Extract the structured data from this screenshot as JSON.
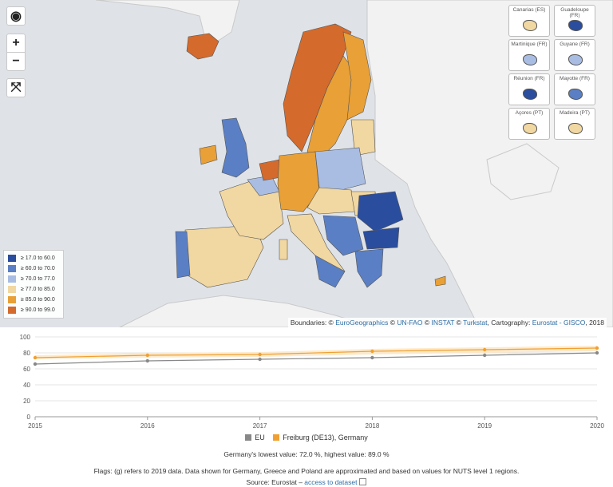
{
  "map": {
    "controls": {
      "globe_label": "◉",
      "zoom_in_label": "+",
      "zoom_out_label": "−",
      "fullscreen_label": "⤧"
    },
    "legend": [
      {
        "label": "≥ 17.0 to 60.0",
        "color": "#2a4d9e"
      },
      {
        "label": "≥ 60.0 to 70.0",
        "color": "#5a7fc4"
      },
      {
        "label": "≥ 70.0 to 77.0",
        "color": "#a9bde3"
      },
      {
        "label": "≥ 77.0 to 85.0",
        "color": "#f1d7a1"
      },
      {
        "label": "≥ 85.0 to 90.0",
        "color": "#e8a037"
      },
      {
        "label": "≥ 90.0 to 99.0",
        "color": "#d46a2b"
      }
    ],
    "insets": [
      {
        "label": "Canarias (ES)",
        "color": "#f1d7a1"
      },
      {
        "label": "Guadeloupe (FR)",
        "color": "#2a4d9e"
      },
      {
        "label": "Martinique (FR)",
        "color": "#a9bde3"
      },
      {
        "label": "Guyane (FR)",
        "color": "#a9bde3"
      },
      {
        "label": "Réunion (FR)",
        "color": "#2a4d9e"
      },
      {
        "label": "Mayotte (FR)",
        "color": "#5a7fc4"
      },
      {
        "label": "Açores (PT)",
        "color": "#f1d7a1"
      },
      {
        "label": "Madeira (PT)",
        "color": "#f1d7a1"
      }
    ],
    "attribution": {
      "prefix": "Boundaries: © ",
      "eurogeo": "EuroGeographics",
      "mid1": " © ",
      "unfao": "UN-FAO",
      "mid2": " © ",
      "instat": "INSTAT",
      "mid3": " © ",
      "turkstat": "Turkstat",
      "mid4": ", Cartography: ",
      "carto": "Eurostat - GISCO",
      "suffix": ", 2018"
    }
  },
  "chart_data": {
    "type": "line",
    "x": [
      2015,
      2016,
      2017,
      2018,
      2019,
      2020
    ],
    "ylim": [
      0,
      100
    ],
    "yticks": [
      0,
      20,
      40,
      60,
      80,
      100
    ],
    "series": [
      {
        "name": "EU",
        "color": "#888888",
        "values": [
          66,
          70,
          72,
          74,
          77,
          80
        ]
      },
      {
        "name": "Freiburg (DE13), Germany",
        "color": "#f0a030",
        "values": [
          74,
          77,
          78,
          82,
          84,
          86
        ]
      }
    ],
    "band": {
      "color": "#fde8c8",
      "low": [
        72,
        74,
        75,
        78,
        80,
        82
      ],
      "high": [
        77,
        80,
        81,
        85,
        87,
        89
      ]
    }
  },
  "chart_legend": {
    "eu_label": "EU",
    "freiburg_label": "Freiburg (DE13), Germany"
  },
  "footnotes": {
    "lowest_highest": "Germany's lowest value: 72.0 %, highest value: 89.0 %",
    "flags": "Flags: (g) refers to 2019 data. Data shown for Germany, Greece and Poland are approximated and based on values for NUTS level 1 regions.",
    "source_prefix": "Source: Eurostat – ",
    "source_link": "access to dataset"
  }
}
